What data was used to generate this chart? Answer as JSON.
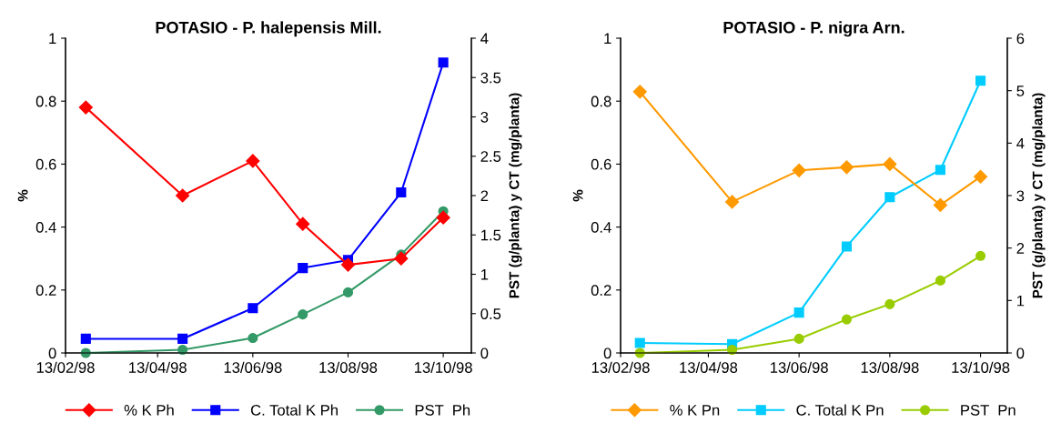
{
  "chart_data": [
    {
      "type": "line",
      "title": "POTASIO - P. halepensis Mill.",
      "ylabel": "%",
      "y2label": "PST (g/planta) y CT (mg/planta)",
      "x": [
        "1998-02-26",
        "1998-04-29",
        "1998-06-13",
        "1998-07-15",
        "1998-08-13",
        "1998-09-16",
        "1998-10-13"
      ],
      "series": [
        {
          "name": "% K Ph",
          "color": "#ff0000",
          "marker": "diamond",
          "values": [
            0.78,
            0.5,
            0.61,
            0.41,
            0.28,
            0.3,
            0.43
          ]
        },
        {
          "name": "C. Total K Ph",
          "color": "#0000ff",
          "marker": "square",
          "axis": "y2",
          "values": [
            0.18,
            0.18,
            0.57,
            1.08,
            1.18,
            2.04,
            3.69
          ]
        },
        {
          "name": "PST  Ph",
          "color": "#339966",
          "marker": "circle",
          "axis": "y2",
          "values": [
            0,
            0.04,
            0.19,
            0.49,
            0.77,
            1.25,
            1.8
          ]
        }
      ],
      "xlim": [
        "1998-02-13",
        "1998-10-31"
      ],
      "xticks": [
        {
          "value": "1998-02-13",
          "label": "13/02/98"
        },
        {
          "value": "1998-04-13",
          "label": "13/04/98"
        },
        {
          "value": "1998-06-13",
          "label": "13/06/98"
        },
        {
          "value": "1998-08-13",
          "label": "13/08/98"
        },
        {
          "value": "1998-10-13",
          "label": "13/10/98"
        }
      ],
      "ylim": [
        0,
        1
      ],
      "yticks": [
        0,
        0.2,
        0.4,
        0.6,
        0.8,
        1
      ],
      "y2lim": [
        0,
        4
      ],
      "y2ticks": [
        0,
        0.5,
        1,
        1.5,
        2,
        2.5,
        3,
        3.5,
        4
      ],
      "grid": false,
      "legend": "bottom",
      "line_style": "solid"
    },
    {
      "type": "line",
      "title": "POTASIO - P. nigra Arn.",
      "ylabel": "%",
      "y2label": "PST (g/planta) y CT (mg/planta)",
      "x": [
        "1998-02-26",
        "1998-04-29",
        "1998-06-13",
        "1998-07-15",
        "1998-08-13",
        "1998-09-16",
        "1998-10-13"
      ],
      "series": [
        {
          "name": "% K Pn",
          "color": "#ff9900",
          "marker": "diamond",
          "values": [
            0.83,
            0.48,
            0.58,
            0.59,
            0.6,
            0.47,
            0.56
          ]
        },
        {
          "name": "C. Total K Pn",
          "color": "#00ccff",
          "marker": "square",
          "axis": "y2",
          "values": [
            0.19,
            0.17,
            0.77,
            2.03,
            2.97,
            3.49,
            5.19
          ]
        },
        {
          "name": "PST  Pn",
          "color": "#99cc00",
          "marker": "circle",
          "axis": "y2",
          "values": [
            0,
            0.06,
            0.27,
            0.64,
            0.93,
            1.38,
            1.85
          ]
        }
      ],
      "xlim": [
        "1998-02-13",
        "1998-10-31"
      ],
      "xticks": [
        {
          "value": "1998-02-13",
          "label": "13/02/98"
        },
        {
          "value": "1998-04-13",
          "label": "13/04/98"
        },
        {
          "value": "1998-06-13",
          "label": "13/06/98"
        },
        {
          "value": "1998-08-13",
          "label": "13/08/98"
        },
        {
          "value": "1998-10-13",
          "label": "13/10/98"
        }
      ],
      "ylim": [
        0,
        1
      ],
      "yticks": [
        0,
        0.2,
        0.4,
        0.6,
        0.8,
        1
      ],
      "y2lim": [
        0,
        6
      ],
      "y2ticks": [
        0,
        1,
        2,
        3,
        4,
        5,
        6
      ],
      "grid": false,
      "legend": "bottom",
      "line_style": "solid"
    }
  ]
}
